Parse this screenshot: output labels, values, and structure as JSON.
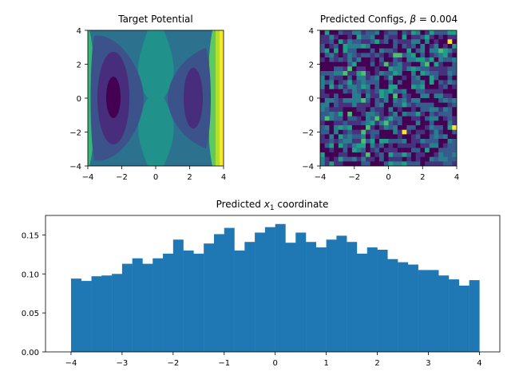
{
  "chart_data": [
    {
      "type": "heatmap",
      "title": "Target Potential",
      "xlim": [
        -4,
        4
      ],
      "ylim": [
        -4,
        4
      ],
      "xticks": [
        "−4",
        "−2",
        "0",
        "2",
        "4"
      ],
      "yticks": [
        "4",
        "2",
        "0",
        "−2",
        "−4"
      ],
      "colormap": "viridis",
      "style": "filled-contour",
      "description_values": "double-well potential with minima near x1 = -2.5 and x1 = 2.3, y = 0"
    },
    {
      "type": "heatmap",
      "title_prefix": "Predicted Configs, ",
      "title_beta": "β",
      "title_suffix": " = 0.004",
      "xlim": [
        -4,
        4
      ],
      "ylim": [
        -4,
        4
      ],
      "xticks": [
        "−4",
        "−2",
        "0",
        "2",
        "4"
      ],
      "yticks": [
        "4",
        "2",
        "0",
        "−2",
        "−4"
      ],
      "colormap": "viridis",
      "grid_cells": [
        30,
        30
      ]
    },
    {
      "type": "bar",
      "title_prefix": "Predicted ",
      "title_var": "x",
      "title_sub": "1",
      "title_suffix": " coordinate",
      "xlim": [
        -4.5,
        4.4
      ],
      "ylim": [
        0,
        0.175
      ],
      "xticks": [
        "−4",
        "−3",
        "−2",
        "−1",
        "0",
        "1",
        "2",
        "3",
        "4"
      ],
      "yticks": [
        "0.00",
        "0.05",
        "0.10",
        "0.15"
      ],
      "bin_start": -4,
      "bin_width": 0.2,
      "values": [
        0.094,
        0.091,
        0.097,
        0.098,
        0.1,
        0.113,
        0.12,
        0.113,
        0.12,
        0.126,
        0.144,
        0.13,
        0.126,
        0.139,
        0.151,
        0.159,
        0.13,
        0.141,
        0.153,
        0.16,
        0.164,
        0.14,
        0.153,
        0.141,
        0.134,
        0.144,
        0.149,
        0.141,
        0.126,
        0.134,
        0.131,
        0.119,
        0.115,
        0.112,
        0.105,
        0.105,
        0.098,
        0.093,
        0.085,
        0.092
      ],
      "color": "#1f77b4"
    }
  ]
}
